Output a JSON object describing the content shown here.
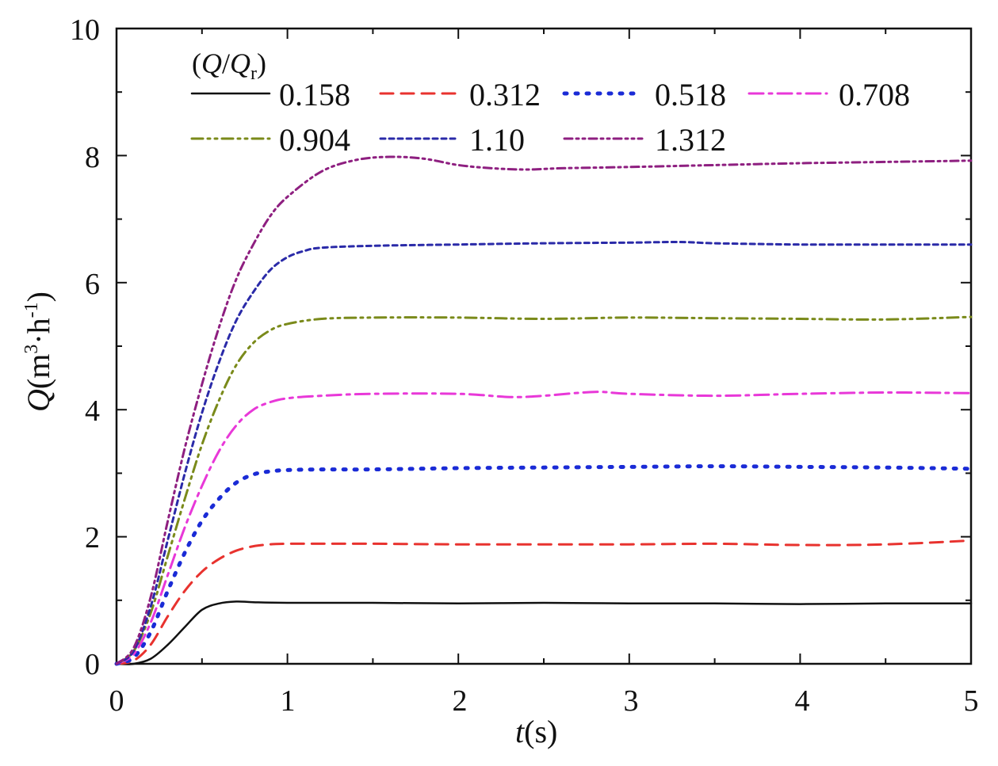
{
  "chart_data": {
    "type": "line",
    "xlabel": {
      "var": "t",
      "unit": "(s)"
    },
    "ylabel": {
      "var": "Q",
      "unit_open": "(m",
      "sup1": "3",
      "mid": "·h",
      "sup2": "-1",
      "unit_close": ")"
    },
    "xlim": [
      0,
      5
    ],
    "ylim": [
      0,
      10
    ],
    "x_ticks": [
      "0",
      "1",
      "2",
      "3",
      "4",
      "5"
    ],
    "y_ticks": [
      "0",
      "2",
      "4",
      "6",
      "8",
      "10"
    ],
    "legend_title": {
      "open": "(",
      "var1": "Q",
      "slash": "/",
      "var2": "Q",
      "sub": "r",
      "close": ")"
    },
    "series": [
      {
        "name": "0.158",
        "color": "#111111",
        "style": "solid",
        "x": [
          0,
          0.1,
          0.2,
          0.3,
          0.4,
          0.5,
          0.6,
          0.7,
          0.8,
          1.0,
          1.5,
          2.0,
          2.5,
          3.0,
          3.5,
          4.0,
          4.5,
          5.0
        ],
        "y": [
          0,
          0.0,
          0.08,
          0.3,
          0.58,
          0.85,
          0.95,
          0.98,
          0.97,
          0.96,
          0.96,
          0.95,
          0.96,
          0.95,
          0.95,
          0.94,
          0.95,
          0.95
        ]
      },
      {
        "name": "0.312",
        "color": "#e8322e",
        "style": "dash",
        "x": [
          0,
          0.1,
          0.2,
          0.3,
          0.4,
          0.5,
          0.6,
          0.7,
          0.8,
          0.9,
          1.0,
          1.5,
          2.0,
          2.5,
          3.0,
          3.5,
          4.0,
          4.5,
          5.0
        ],
        "y": [
          0,
          0.05,
          0.3,
          0.75,
          1.15,
          1.45,
          1.65,
          1.78,
          1.85,
          1.88,
          1.89,
          1.89,
          1.88,
          1.88,
          1.88,
          1.89,
          1.87,
          1.88,
          1.94
        ]
      },
      {
        "name": "0.518",
        "color": "#1a2bd6",
        "style": "dot",
        "x": [
          0,
          0.1,
          0.2,
          0.3,
          0.4,
          0.5,
          0.6,
          0.7,
          0.8,
          0.9,
          1.0,
          1.2,
          1.5,
          2.0,
          2.5,
          3.0,
          3.5,
          4.0,
          4.5,
          5.0
        ],
        "y": [
          0,
          0.1,
          0.5,
          1.15,
          1.75,
          2.25,
          2.6,
          2.85,
          2.98,
          3.03,
          3.05,
          3.06,
          3.06,
          3.08,
          3.09,
          3.1,
          3.11,
          3.1,
          3.09,
          3.07
        ]
      },
      {
        "name": "0.708",
        "color": "#e838d8",
        "style": "dashdot",
        "x": [
          0,
          0.1,
          0.2,
          0.3,
          0.4,
          0.5,
          0.6,
          0.7,
          0.8,
          0.9,
          1.0,
          1.2,
          1.5,
          2.0,
          2.3,
          2.5,
          2.8,
          3.0,
          3.5,
          4.0,
          4.5,
          5.0
        ],
        "y": [
          0,
          0.15,
          0.65,
          1.4,
          2.15,
          2.8,
          3.35,
          3.75,
          4.0,
          4.12,
          4.18,
          4.22,
          4.25,
          4.25,
          4.2,
          4.22,
          4.28,
          4.25,
          4.22,
          4.25,
          4.27,
          4.26
        ]
      },
      {
        "name": "0.904",
        "color": "#7a8a1a",
        "style": "dashdotdot",
        "x": [
          0,
          0.1,
          0.2,
          0.3,
          0.4,
          0.5,
          0.6,
          0.7,
          0.8,
          0.9,
          1.0,
          1.2,
          1.5,
          2.0,
          2.5,
          3.0,
          3.5,
          4.0,
          4.5,
          5.0
        ],
        "y": [
          0,
          0.2,
          0.8,
          1.7,
          2.6,
          3.45,
          4.15,
          4.7,
          5.05,
          5.25,
          5.35,
          5.43,
          5.45,
          5.45,
          5.43,
          5.45,
          5.44,
          5.43,
          5.42,
          5.46
        ]
      },
      {
        "name": "1.10",
        "color": "#2a2aa8",
        "style": "shortdash",
        "x": [
          0,
          0.1,
          0.2,
          0.3,
          0.4,
          0.5,
          0.6,
          0.7,
          0.8,
          0.9,
          1.0,
          1.1,
          1.2,
          1.5,
          2.0,
          2.5,
          3.0,
          3.3,
          3.5,
          4.0,
          4.5,
          5.0
        ],
        "y": [
          0,
          0.2,
          0.9,
          1.95,
          3.0,
          3.95,
          4.75,
          5.4,
          5.85,
          6.2,
          6.4,
          6.5,
          6.55,
          6.58,
          6.6,
          6.62,
          6.63,
          6.64,
          6.62,
          6.6,
          6.6,
          6.6
        ]
      },
      {
        "name": "1.312",
        "color": "#8e1f80",
        "style": "dashdotdot2",
        "x": [
          0,
          0.1,
          0.2,
          0.3,
          0.4,
          0.5,
          0.6,
          0.7,
          0.8,
          0.9,
          1.0,
          1.2,
          1.4,
          1.6,
          1.8,
          2.0,
          2.2,
          2.4,
          2.6,
          3.0,
          3.5,
          4.0,
          4.5,
          5.0
        ],
        "y": [
          0,
          0.25,
          1.05,
          2.25,
          3.4,
          4.4,
          5.3,
          6.05,
          6.6,
          7.05,
          7.35,
          7.75,
          7.93,
          7.98,
          7.95,
          7.85,
          7.8,
          7.78,
          7.8,
          7.82,
          7.85,
          7.88,
          7.9,
          7.92
        ]
      }
    ]
  }
}
